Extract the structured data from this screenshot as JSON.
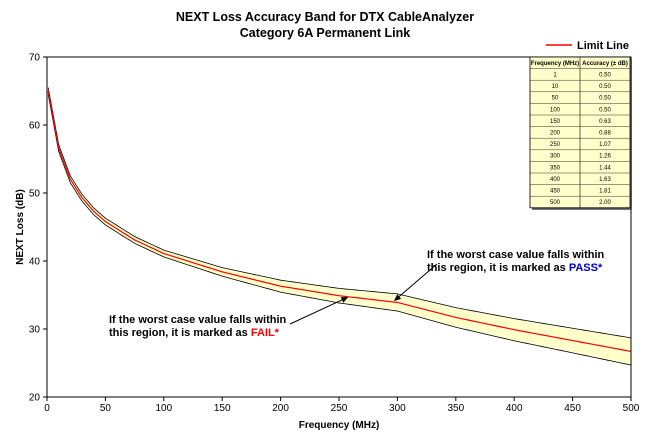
{
  "chart_data": {
    "type": "area",
    "title": "NEXT Loss Accuracy Band for DTX CableAnalyzer",
    "subtitle": "Category 6A Permanent Link",
    "xlabel": "Frequency (MHz)",
    "ylabel": "NEXT Loss (dB)",
    "xlim": [
      0,
      500
    ],
    "ylim": [
      20,
      70
    ],
    "x_ticks": [
      0,
      50,
      100,
      150,
      200,
      250,
      300,
      350,
      400,
      450,
      500
    ],
    "y_ticks": [
      20,
      30,
      40,
      50,
      60,
      70
    ],
    "grid": false,
    "legend": {
      "position": "top-right",
      "entries": [
        {
          "name": "Limit Line",
          "color": "#ff0000"
        }
      ]
    },
    "limit_line": {
      "name": "Limit Line",
      "points": [
        [
          1,
          65.0
        ],
        [
          5,
          61.3
        ],
        [
          10,
          56.6
        ],
        [
          20,
          52.0
        ],
        [
          30,
          49.3
        ],
        [
          40,
          47.3
        ],
        [
          50,
          45.8
        ],
        [
          75,
          43.1
        ],
        [
          100,
          41.1
        ],
        [
          150,
          38.4
        ],
        [
          200,
          36.3
        ],
        [
          250,
          34.9
        ],
        [
          300,
          33.9
        ],
        [
          350,
          31.7
        ],
        [
          400,
          29.9
        ],
        [
          450,
          28.3
        ],
        [
          500,
          26.7
        ]
      ]
    },
    "accuracy_table": {
      "headers": [
        "Frequency (MHz)",
        "Accuracy (± dB)"
      ],
      "rows": [
        [
          "1",
          "0.50"
        ],
        [
          "10",
          "0.50"
        ],
        [
          "50",
          "0.50"
        ],
        [
          "100",
          "0.50"
        ],
        [
          "150",
          "0.63"
        ],
        [
          "200",
          "0.88"
        ],
        [
          "250",
          "1.07"
        ],
        [
          "300",
          "1.26"
        ],
        [
          "350",
          "1.44"
        ],
        [
          "400",
          "1.63"
        ],
        [
          "450",
          "1.81"
        ],
        [
          "500",
          "2.00"
        ]
      ],
      "frequencies": [
        1,
        10,
        50,
        100,
        150,
        200,
        250,
        300,
        350,
        400,
        450,
        500
      ],
      "accuracy": [
        0.5,
        0.5,
        0.5,
        0.5,
        0.63,
        0.88,
        1.07,
        1.26,
        1.44,
        1.63,
        1.81,
        2.0
      ]
    },
    "annotations": [
      {
        "line1": "If the worst case value falls within",
        "line2_prefix": "this region, it is marked as ",
        "keyword": "PASS",
        "suffix": "*",
        "keyword_color": "#0000cc",
        "target_x": 297,
        "target_y": 34.1
      },
      {
        "line1": "If the worst case value falls within",
        "line2_prefix": "this region, it is marked as ",
        "keyword": "FAIL",
        "suffix": "*",
        "keyword_color": "#ff0000",
        "target_x": 258,
        "target_y": 34.7
      }
    ],
    "colors": {
      "band_fill": "#ffffcc",
      "limit_line": "#ff0000",
      "frame": "#000000"
    }
  }
}
